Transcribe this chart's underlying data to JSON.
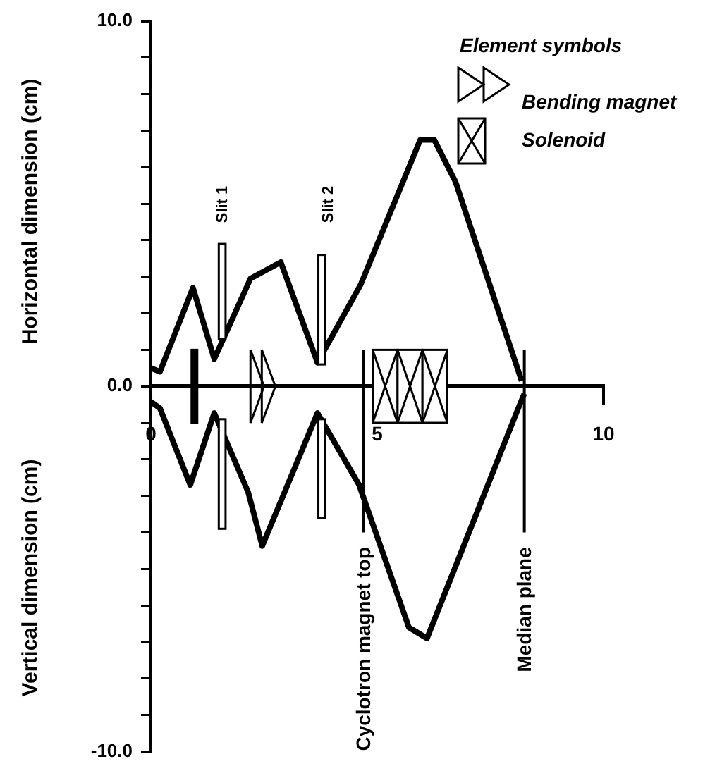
{
  "chart_data": {
    "type": "line",
    "ylabel": "Horizontal dimension (cm)",
    "xlim": [
      0,
      10
    ],
    "xticks": [
      0,
      5,
      10
    ],
    "ylim": [
      -10,
      10
    ],
    "yticks": [
      {
        "value": -10,
        "label": "-10.0"
      },
      {
        "value": -9,
        "label": null
      },
      {
        "value": -8,
        "label": null
      },
      {
        "value": -7,
        "label": null
      },
      {
        "value": -6,
        "label": null
      },
      {
        "value": -5,
        "label": null
      },
      {
        "value": -4,
        "label": null
      },
      {
        "value": -3,
        "label": null
      },
      {
        "value": -2,
        "label": null
      },
      {
        "value": -1,
        "label": null
      },
      {
        "value": 0,
        "label": "0.0"
      },
      {
        "value": 1,
        "label": null
      },
      {
        "value": 2,
        "label": null
      },
      {
        "value": 3,
        "label": null
      },
      {
        "value": 4,
        "label": null
      },
      {
        "value": 5,
        "label": null
      },
      {
        "value": 6,
        "label": null
      },
      {
        "value": 7,
        "label": null
      },
      {
        "value": 8,
        "label": null
      },
      {
        "value": 9,
        "label": null
      },
      {
        "value": 10,
        "label": "10.0"
      }
    ],
    "series": [
      {
        "color": "#000000",
        "x": [
          0,
          0.2,
          0.93,
          1.4,
          2.2,
          2.87,
          3.68,
          4.64,
          5.95,
          6.26,
          6.73,
          8.19
        ],
        "values": [
          0.5,
          0.4,
          2.7,
          0.75,
          2.95,
          3.4,
          0.65,
          2.8,
          6.75,
          6.75,
          5.6,
          0.15
        ]
      },
      {
        "color": "#000000",
        "x": [
          0,
          0.2,
          0.87,
          1.4,
          2.15,
          2.46,
          3.68,
          4.6,
          5.7,
          6.1,
          8.1,
          8.25
        ],
        "values": [
          -0.42,
          -0.6,
          -2.7,
          -0.73,
          -2.9,
          -4.37,
          -0.73,
          -2.7,
          -6.6,
          -6.9,
          -0.65,
          -0.2
        ]
      }
    ],
    "ref_lines": [
      {
        "axis": "x",
        "value": 4.7,
        "label": "Cyclotron magnet top"
      },
      {
        "axis": "x",
        "value": 8.25,
        "label": "Median plane"
      }
    ],
    "annotations": [
      "Slit 1",
      "Slit 2",
      "Element symbols",
      "Bending magnet",
      "Solenoid",
      "Vertical dimension (cm)"
    ],
    "grid": false,
    "legend": false
  }
}
